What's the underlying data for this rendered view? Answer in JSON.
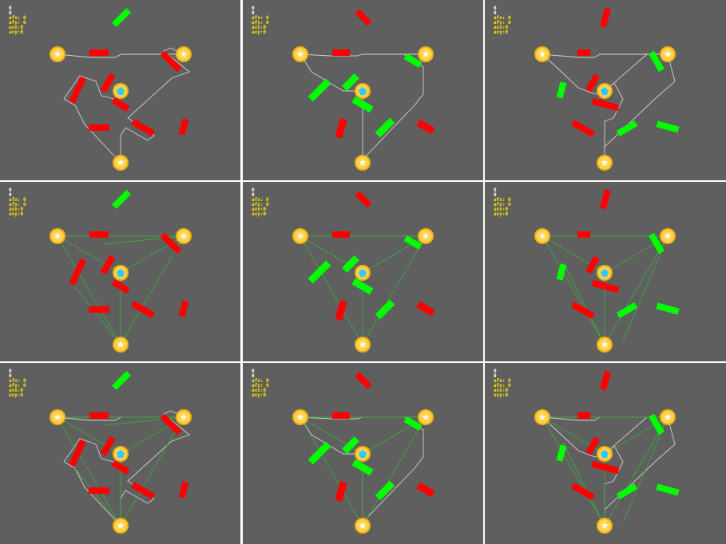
{
  "colors": {
    "background": "#5f5f5f",
    "divider": "#ffffff",
    "blocker_red": "#ff0000",
    "blocker_green": "#00ff00",
    "coin": "#ffd24a",
    "coin_ring": "#f2b010",
    "goal_gem": "#30c8ff",
    "path_gray": "#d0d0d0",
    "path_green": "#3ca83c",
    "hud_white": "#ffffff",
    "hud_yellow": "#ffe800"
  },
  "hud": {
    "line1": "0",
    "line2": "0",
    "afx": "afx: 0",
    "afy": "afy: 0",
    "avx": "avx:0",
    "avy": "avy:0"
  },
  "icons": {
    "coin": "star-coin-icon",
    "goal": "gem-goal-icon"
  },
  "rows": [
    {
      "row": 1,
      "mode": "gray-paths"
    },
    {
      "row": 2,
      "mode": "green-network"
    },
    {
      "row": 3,
      "mode": "combined"
    }
  ],
  "levels": [
    {
      "column": 1,
      "blocker_colors": [
        "green",
        "red",
        "red",
        "red",
        "red",
        "red",
        "red",
        "red",
        "red"
      ]
    },
    {
      "column": 2,
      "blocker_colors": [
        "red",
        "red",
        "green",
        "green",
        "green",
        "green",
        "red",
        "green"
      ]
    },
    {
      "column": 3,
      "blocker_colors": [
        "red",
        "red",
        "green",
        "green",
        "red",
        "red",
        "red",
        "green",
        "green"
      ]
    }
  ]
}
